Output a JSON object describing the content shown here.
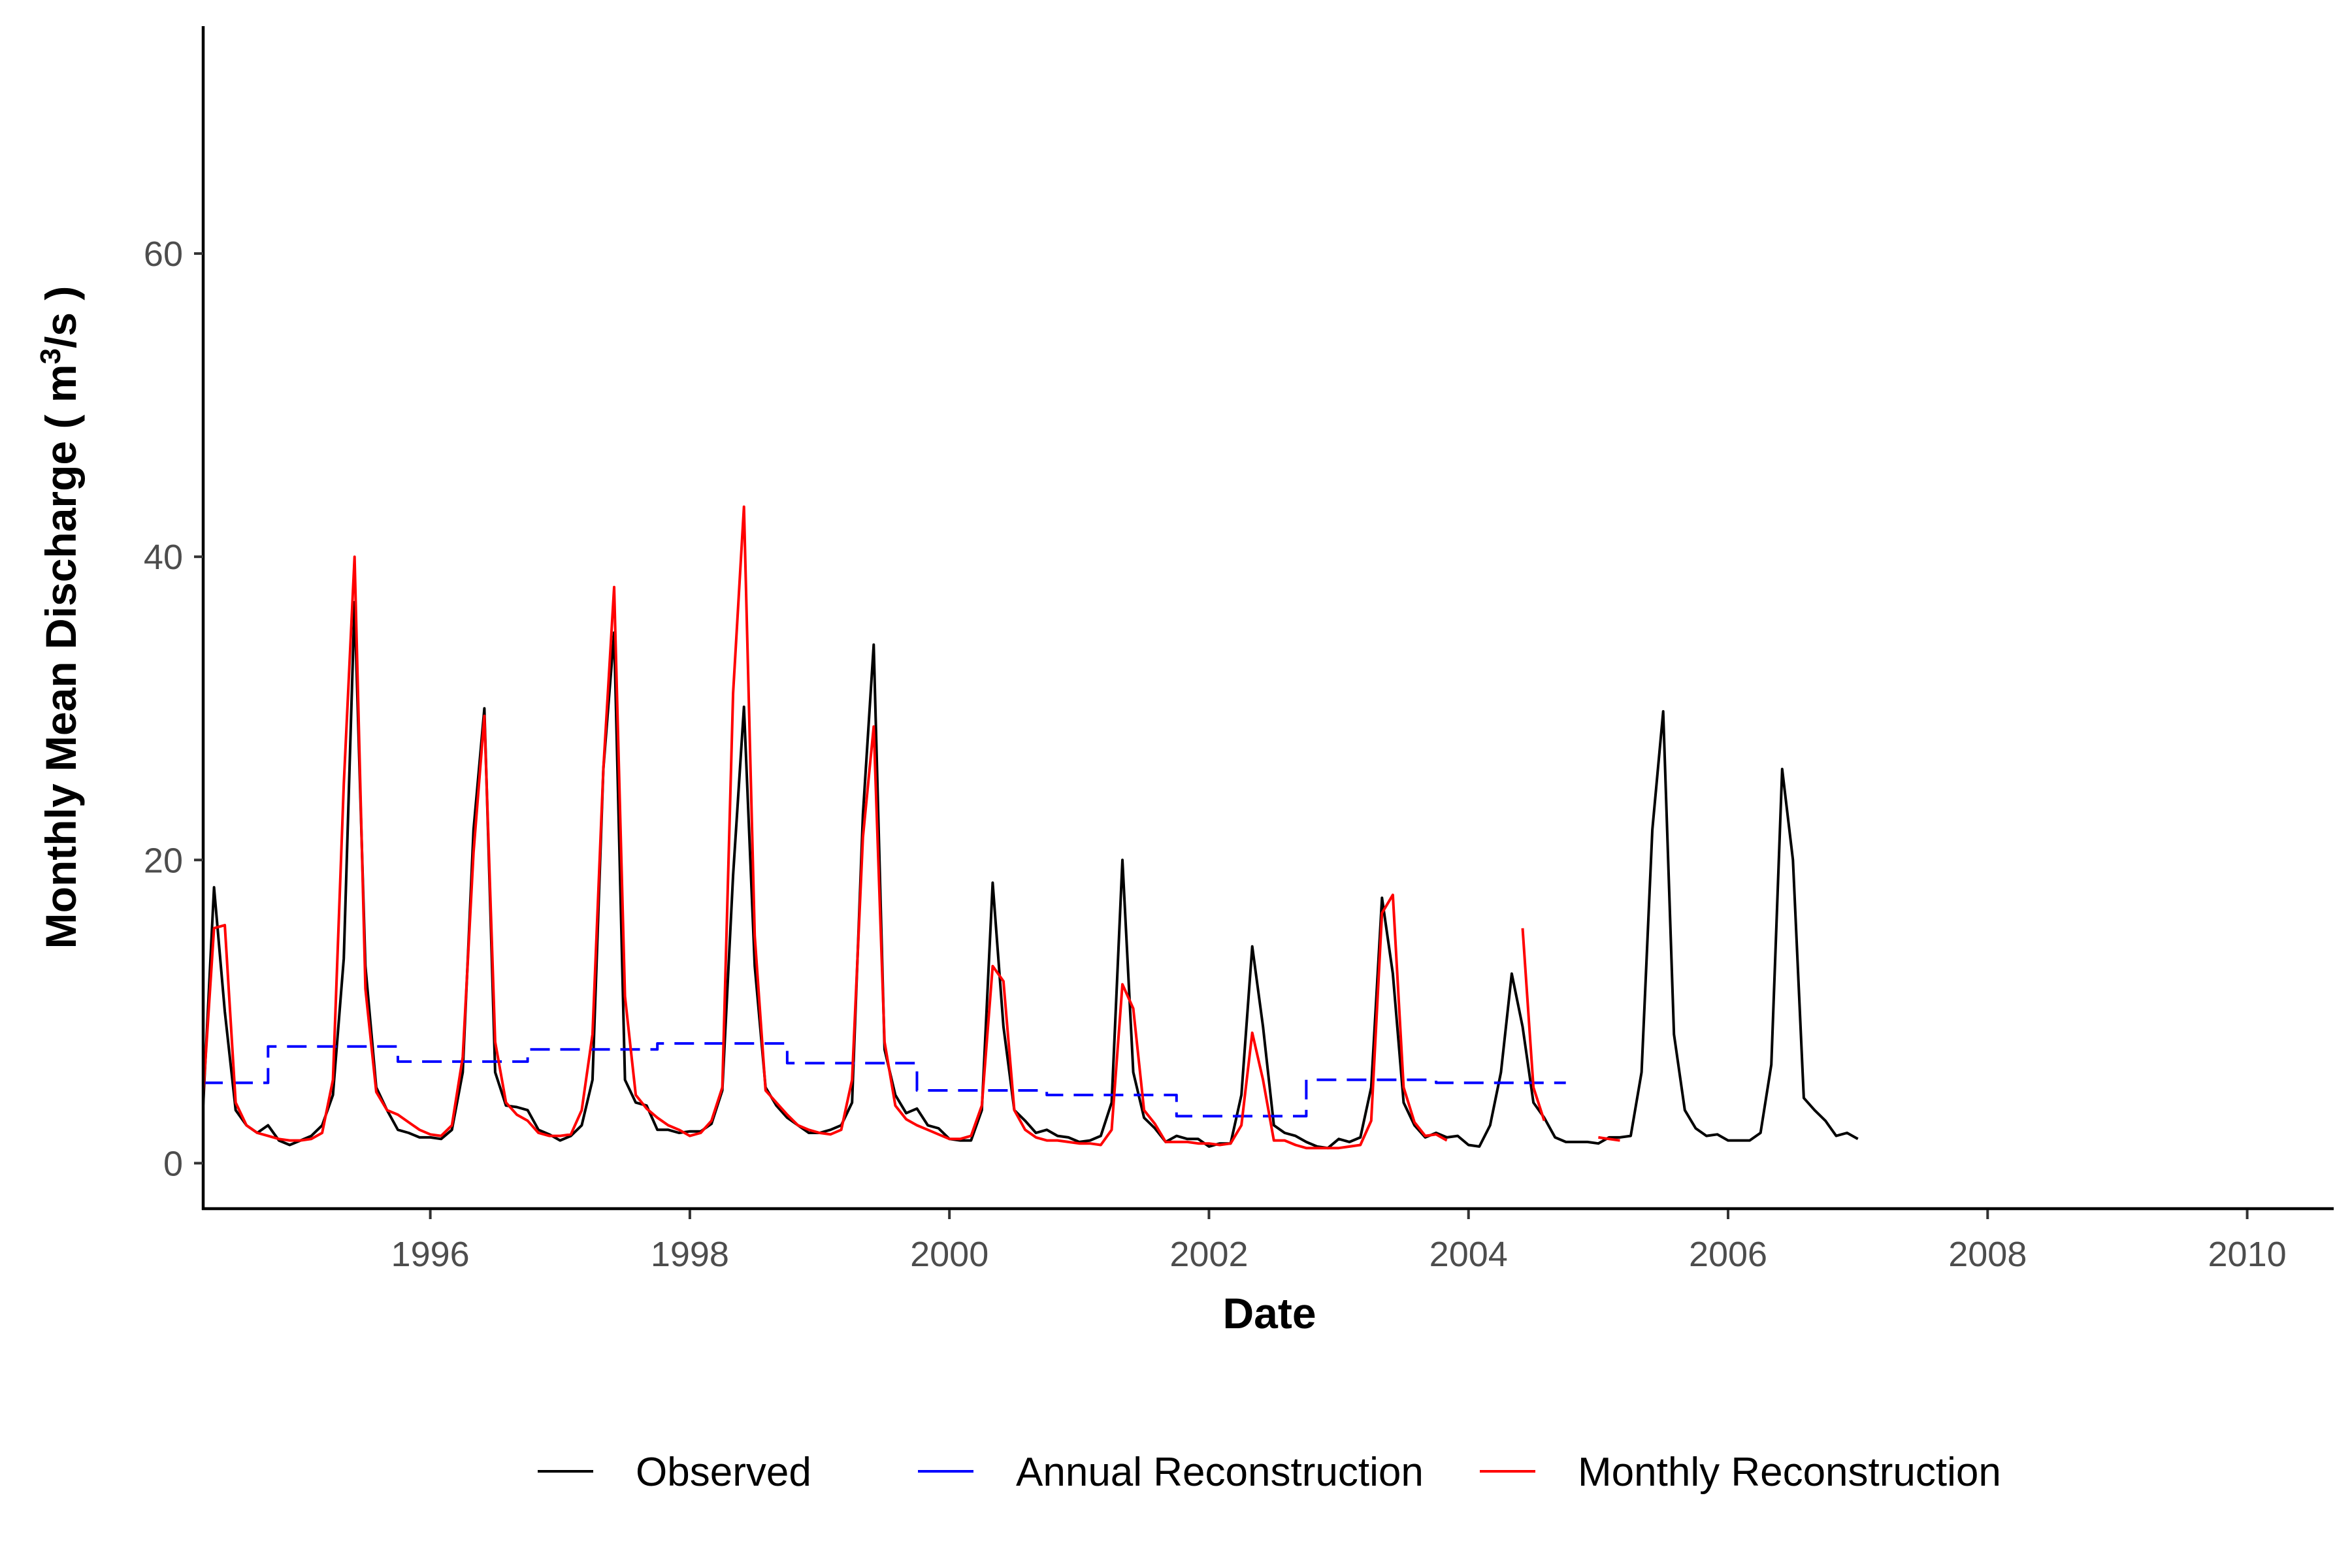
{
  "chart_data": {
    "type": "line",
    "xlabel": "Date",
    "ylabel_parts": {
      "prefix": "Monthly Mean Discharge ( m",
      "sup": "3",
      "suffix": "/s )"
    },
    "x_range": [
      "1994-04",
      "2010-09"
    ],
    "ylim": [
      -3,
      75
    ],
    "x_ticks": [
      {
        "value": "1996-01",
        "label": "1996"
      },
      {
        "value": "1998-01",
        "label": "1998"
      },
      {
        "value": "2000-01",
        "label": "2000"
      },
      {
        "value": "2002-01",
        "label": "2002"
      },
      {
        "value": "2004-01",
        "label": "2004"
      },
      {
        "value": "2006-01",
        "label": "2006"
      },
      {
        "value": "2008-01",
        "label": "2008"
      },
      {
        "value": "2010-01",
        "label": "2010"
      }
    ],
    "y_ticks": [
      {
        "value": 0,
        "label": "0"
      },
      {
        "value": 20,
        "label": "20"
      },
      {
        "value": 40,
        "label": "40"
      },
      {
        "value": 60,
        "label": "60"
      }
    ],
    "grid": false,
    "legend_position": "bottom",
    "series": [
      {
        "name": "Observed",
        "color": "#000000",
        "dash": "solid",
        "start": "1994-04",
        "values": [
          3.8,
          18.2,
          10.0,
          3.5,
          2.5,
          2.0,
          2.5,
          1.5,
          1.2,
          1.5,
          1.8,
          2.5,
          4.5,
          13.5,
          37.0,
          13.0,
          5.0,
          3.5,
          2.2,
          2.0,
          1.7,
          1.7,
          1.6,
          2.2,
          6.0,
          22.0,
          30.0,
          6.0,
          3.8,
          3.7,
          3.5,
          2.2,
          1.9,
          1.5,
          1.8,
          2.5,
          5.5,
          26.0,
          35.0,
          5.5,
          4.0,
          3.8,
          2.2,
          2.2,
          2.0,
          2.1,
          2.1,
          2.6,
          4.8,
          19.0,
          30.1,
          13.0,
          5.0,
          3.8,
          3.0,
          2.5,
          2.0,
          2.0,
          2.2,
          2.5,
          4.0,
          23.0,
          34.2,
          7.5,
          4.5,
          3.3,
          3.6,
          2.5,
          2.3,
          1.6,
          1.5,
          1.5,
          3.5,
          18.5,
          9.0,
          3.5,
          2.8,
          2.0,
          2.2,
          1.8,
          1.7,
          1.4,
          1.5,
          1.8,
          4.0,
          20.0,
          6.0,
          3.0,
          2.3,
          1.4,
          1.8,
          1.6,
          1.6,
          1.1,
          1.3,
          1.3,
          4.5,
          14.3,
          9.0,
          2.5,
          2.0,
          1.8,
          1.4,
          1.1,
          1.0,
          1.6,
          1.4,
          1.7,
          5.0,
          17.5,
          12.5,
          4.0,
          2.5,
          1.7,
          2.0,
          1.7,
          1.8,
          1.2,
          1.1,
          2.5,
          6.0,
          12.5,
          9.0,
          4.0,
          3.0,
          1.7,
          1.4,
          1.4,
          1.4,
          1.3,
          1.7,
          1.7,
          1.8,
          6.0,
          22.0,
          29.8,
          8.5,
          3.5,
          2.3,
          1.8,
          1.9,
          1.5,
          1.5,
          1.5,
          2.0,
          6.5,
          26.0,
          20.0,
          4.3,
          3.5,
          2.8,
          1.8,
          2.0,
          1.6
        ]
      },
      {
        "name": "Annual Reconstruction",
        "color": "#0000ff",
        "dash": "dashed",
        "steps": [
          {
            "from": "1994-04",
            "to": "1994-10",
            "value": 5.3
          },
          {
            "from": "1994-10",
            "to": "1995-10",
            "value": 7.7
          },
          {
            "from": "1995-10",
            "to": "1996-10",
            "value": 6.7
          },
          {
            "from": "1996-10",
            "to": "1997-10",
            "value": 7.5
          },
          {
            "from": "1997-10",
            "to": "1998-10",
            "value": 7.9
          },
          {
            "from": "1998-10",
            "to": "1999-10",
            "value": 6.6
          },
          {
            "from": "1999-10",
            "to": "2000-10",
            "value": 4.8
          },
          {
            "from": "2000-10",
            "to": "2001-10",
            "value": 4.5
          },
          {
            "from": "2001-10",
            "to": "2002-10",
            "value": 3.1
          },
          {
            "from": "2002-10",
            "to": "2003-10",
            "value": 5.5
          },
          {
            "from": "2003-10",
            "to": "2004-10",
            "value": 5.3
          }
        ]
      },
      {
        "name": "Monthly Reconstruction",
        "color": "#ff0000",
        "dash": "solid",
        "start": "1994-04",
        "values": [
          4.5,
          15.5,
          15.7,
          4.0,
          2.5,
          2.0,
          1.8,
          1.6,
          1.5,
          1.5,
          1.6,
          2.0,
          5.5,
          25.0,
          40.0,
          11.5,
          4.7,
          3.5,
          3.2,
          2.7,
          2.2,
          1.9,
          1.8,
          2.5,
          7.0,
          20.5,
          29.5,
          8.0,
          4.0,
          3.2,
          2.8,
          2.0,
          1.8,
          1.8,
          1.9,
          3.5,
          8.5,
          26.0,
          38.0,
          11.0,
          4.5,
          3.6,
          3.0,
          2.5,
          2.2,
          1.8,
          2.0,
          2.8,
          5.0,
          31.0,
          43.3,
          15.0,
          4.8,
          4.0,
          3.2,
          2.5,
          2.2,
          2.0,
          1.9,
          2.2,
          5.5,
          21.5,
          28.8,
          8.0,
          3.8,
          2.9,
          2.5,
          2.2,
          1.9,
          1.6,
          1.6,
          1.8,
          3.8,
          13.0,
          12.0,
          3.5,
          2.2,
          1.7,
          1.5,
          1.5,
          1.4,
          1.3,
          1.3,
          1.2,
          2.2,
          11.8,
          10.2,
          3.5,
          2.6,
          1.4,
          1.4,
          1.4,
          1.3,
          1.3,
          1.2,
          1.3,
          2.5,
          8.6,
          5.5,
          1.5,
          1.5,
          1.2,
          1.0,
          1.0,
          1.0,
          1.0,
          1.1,
          1.2,
          2.8,
          16.5,
          17.7,
          5.0,
          2.7,
          1.8,
          1.9,
          1.5,
          null,
          null,
          null,
          null,
          null,
          null,
          15.5,
          5.0,
          2.8,
          null,
          null,
          null,
          null,
          1.7,
          1.6,
          1.5
        ]
      }
    ]
  }
}
